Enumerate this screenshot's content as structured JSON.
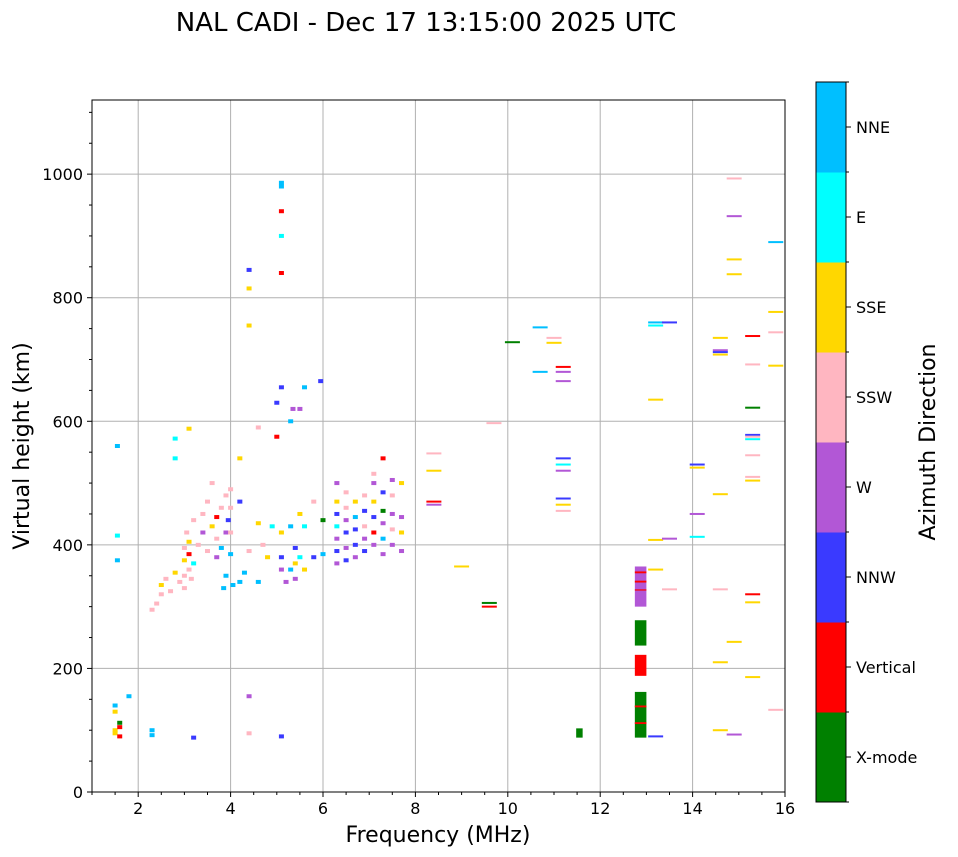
{
  "chart_data": {
    "type": "scatter",
    "title": "NAL CADI - Dec 17 13:15:00 2025 UTC",
    "xlabel": "Frequency (MHz)",
    "ylabel": "Virtual height (km)",
    "xlim": [
      1,
      16
    ],
    "ylim": [
      0,
      1120
    ],
    "xticks": [
      2,
      4,
      6,
      8,
      10,
      12,
      14,
      16
    ],
    "yticks": [
      0,
      200,
      400,
      600,
      800,
      1000
    ],
    "grid": true,
    "colorbar": {
      "label": "Azimuth Direction",
      "categories": [
        {
          "name": "X-mode",
          "color": "#008000"
        },
        {
          "name": "Vertical",
          "color": "#ff0000"
        },
        {
          "name": "NNW",
          "color": "#3a3aff"
        },
        {
          "name": "W",
          "color": "#b257d6"
        },
        {
          "name": "SSW",
          "color": "#ffb6c1"
        },
        {
          "name": "SSE",
          "color": "#ffd700"
        },
        {
          "name": "E",
          "color": "#00ffff"
        },
        {
          "name": "NNE",
          "color": "#00bfff"
        }
      ]
    },
    "points": [
      [
        1.5,
        100,
        "SSE"
      ],
      [
        1.5,
        95,
        "SSE"
      ],
      [
        1.6,
        90,
        "Vertical"
      ],
      [
        1.6,
        105,
        "Vertical"
      ],
      [
        1.5,
        130,
        "SSE"
      ],
      [
        1.5,
        140,
        "NNE"
      ],
      [
        1.6,
        112,
        "X-mode"
      ],
      [
        1.55,
        375,
        "NNE"
      ],
      [
        1.55,
        415,
        "E"
      ],
      [
        1.55,
        560,
        "NNE"
      ],
      [
        1.8,
        155,
        "NNE"
      ],
      [
        2.3,
        92,
        "NNE"
      ],
      [
        2.3,
        100,
        "NNE"
      ],
      [
        3.2,
        88,
        "NNW"
      ],
      [
        4.4,
        95,
        "SSW"
      ],
      [
        4.4,
        155,
        "W"
      ],
      [
        5.1,
        90,
        "NNW"
      ],
      [
        2.3,
        295,
        "SSW"
      ],
      [
        2.4,
        305,
        "SSW"
      ],
      [
        2.5,
        320,
        "SSW"
      ],
      [
        2.5,
        335,
        "SSE"
      ],
      [
        2.6,
        345,
        "SSW"
      ],
      [
        2.7,
        325,
        "SSW"
      ],
      [
        2.8,
        355,
        "SSE"
      ],
      [
        2.8,
        540,
        "E"
      ],
      [
        2.8,
        572,
        "E"
      ],
      [
        2.9,
        340,
        "SSW"
      ],
      [
        3.0,
        330,
        "SSW"
      ],
      [
        3.0,
        350,
        "SSW"
      ],
      [
        3.0,
        375,
        "SSE"
      ],
      [
        3.0,
        395,
        "SSW"
      ],
      [
        3.05,
        420,
        "SSW"
      ],
      [
        3.1,
        360,
        "SSW"
      ],
      [
        3.1,
        385,
        "Vertical"
      ],
      [
        3.1,
        405,
        "SSE"
      ],
      [
        3.15,
        345,
        "SSW"
      ],
      [
        3.2,
        440,
        "SSW"
      ],
      [
        3.2,
        370,
        "E"
      ],
      [
        3.1,
        588,
        "SSE"
      ],
      [
        3.3,
        400,
        "SSW"
      ],
      [
        3.4,
        450,
        "SSW"
      ],
      [
        3.4,
        420,
        "W"
      ],
      [
        3.5,
        470,
        "SSW"
      ],
      [
        3.5,
        390,
        "SSW"
      ],
      [
        3.6,
        430,
        "SSE"
      ],
      [
        3.6,
        500,
        "SSW"
      ],
      [
        3.7,
        410,
        "SSW"
      ],
      [
        3.7,
        445,
        "Vertical"
      ],
      [
        3.7,
        380,
        "W"
      ],
      [
        3.8,
        460,
        "SSW"
      ],
      [
        3.8,
        395,
        "NNE"
      ],
      [
        3.85,
        330,
        "NNE"
      ],
      [
        3.9,
        480,
        "SSW"
      ],
      [
        3.9,
        350,
        "NNE"
      ],
      [
        3.9,
        420,
        "W"
      ],
      [
        3.95,
        440,
        "NNW"
      ],
      [
        4.0,
        385,
        "NNE"
      ],
      [
        4.0,
        420,
        "SSW"
      ],
      [
        4.0,
        460,
        "SSW"
      ],
      [
        4.0,
        490,
        "SSW"
      ],
      [
        4.05,
        335,
        "NNE"
      ],
      [
        4.2,
        340,
        "NNE"
      ],
      [
        4.2,
        470,
        "NNW"
      ],
      [
        4.2,
        540,
        "SSE"
      ],
      [
        4.3,
        355,
        "NNE"
      ],
      [
        4.4,
        390,
        "SSW"
      ],
      [
        4.4,
        755,
        "SSE"
      ],
      [
        4.4,
        815,
        "SSE"
      ],
      [
        4.4,
        845,
        "NNW"
      ],
      [
        4.6,
        340,
        "NNE"
      ],
      [
        4.6,
        435,
        "SSE"
      ],
      [
        4.6,
        590,
        "SSW"
      ],
      [
        4.7,
        400,
        "SSW"
      ],
      [
        4.8,
        380,
        "SSE"
      ],
      [
        4.9,
        430,
        "E"
      ],
      [
        5.0,
        630,
        "NNW"
      ],
      [
        5.0,
        575,
        "Vertical"
      ],
      [
        5.1,
        360,
        "W"
      ],
      [
        5.1,
        380,
        "NNW"
      ],
      [
        5.1,
        420,
        "SSE"
      ],
      [
        5.1,
        655,
        "NNW"
      ],
      [
        5.1,
        840,
        "Vertical"
      ],
      [
        5.1,
        900,
        "E"
      ],
      [
        5.1,
        940,
        "Vertical"
      ],
      [
        5.1,
        980,
        "NNE"
      ],
      [
        5.1,
        986,
        "NNE"
      ],
      [
        5.2,
        340,
        "W"
      ],
      [
        5.3,
        360,
        "NNE"
      ],
      [
        5.3,
        430,
        "NNE"
      ],
      [
        5.3,
        600,
        "NNE"
      ],
      [
        5.35,
        620,
        "W"
      ],
      [
        5.4,
        345,
        "W"
      ],
      [
        5.4,
        370,
        "SSE"
      ],
      [
        5.4,
        395,
        "NNW"
      ],
      [
        5.5,
        380,
        "E"
      ],
      [
        5.5,
        450,
        "SSE"
      ],
      [
        5.5,
        620,
        "W"
      ],
      [
        5.6,
        360,
        "SSE"
      ],
      [
        5.6,
        430,
        "E"
      ],
      [
        5.6,
        655,
        "NNE"
      ],
      [
        5.8,
        380,
        "NNW"
      ],
      [
        5.8,
        470,
        "SSW"
      ],
      [
        5.95,
        665,
        "NNW"
      ],
      [
        6.0,
        440,
        "X-mode"
      ],
      [
        6.0,
        385,
        "NNE"
      ],
      [
        6.3,
        370,
        "W"
      ],
      [
        6.3,
        390,
        "NNW"
      ],
      [
        6.3,
        410,
        "W"
      ],
      [
        6.3,
        430,
        "E"
      ],
      [
        6.3,
        450,
        "NNW"
      ],
      [
        6.3,
        470,
        "SSE"
      ],
      [
        6.3,
        500,
        "W"
      ],
      [
        6.5,
        375,
        "NNW"
      ],
      [
        6.5,
        395,
        "W"
      ],
      [
        6.5,
        420,
        "NNW"
      ],
      [
        6.5,
        440,
        "W"
      ],
      [
        6.5,
        460,
        "SSW"
      ],
      [
        6.5,
        485,
        "SSW"
      ],
      [
        6.7,
        380,
        "W"
      ],
      [
        6.7,
        400,
        "NNW"
      ],
      [
        6.7,
        425,
        "NNW"
      ],
      [
        6.7,
        445,
        "NNE"
      ],
      [
        6.7,
        470,
        "SSE"
      ],
      [
        6.9,
        390,
        "NNW"
      ],
      [
        6.9,
        410,
        "W"
      ],
      [
        6.9,
        430,
        "SSW"
      ],
      [
        6.9,
        455,
        "NNW"
      ],
      [
        6.9,
        480,
        "SSW"
      ],
      [
        7.1,
        400,
        "W"
      ],
      [
        7.1,
        420,
        "Vertical"
      ],
      [
        7.1,
        445,
        "NNW"
      ],
      [
        7.1,
        470,
        "SSE"
      ],
      [
        7.1,
        500,
        "W"
      ],
      [
        7.1,
        515,
        "SSW"
      ],
      [
        7.3,
        385,
        "W"
      ],
      [
        7.3,
        410,
        "NNE"
      ],
      [
        7.3,
        435,
        "W"
      ],
      [
        7.3,
        455,
        "X-mode"
      ],
      [
        7.3,
        485,
        "NNW"
      ],
      [
        7.3,
        540,
        "Vertical"
      ],
      [
        7.5,
        400,
        "W"
      ],
      [
        7.5,
        425,
        "SSW"
      ],
      [
        7.5,
        450,
        "W"
      ],
      [
        7.5,
        480,
        "SSW"
      ],
      [
        7.5,
        505,
        "W"
      ],
      [
        7.7,
        390,
        "W"
      ],
      [
        7.7,
        420,
        "SSE"
      ],
      [
        7.7,
        445,
        "W"
      ],
      [
        7.7,
        500,
        "SSE"
      ],
      [
        8.4,
        465,
        "W"
      ],
      [
        8.4,
        520,
        "SSE"
      ],
      [
        8.4,
        548,
        "SSW"
      ],
      [
        8.4,
        470,
        "Vertical"
      ],
      [
        9.0,
        365,
        "SSE"
      ],
      [
        9.6,
        300,
        "Vertical"
      ],
      [
        9.6,
        306,
        "X-mode"
      ],
      [
        9.7,
        597,
        "SSW"
      ],
      [
        10.1,
        728,
        "X-mode"
      ],
      [
        10.7,
        680,
        "NNE"
      ],
      [
        10.7,
        752,
        "NNE"
      ],
      [
        11.0,
        735,
        "SSW"
      ],
      [
        11.0,
        727,
        "SSE"
      ],
      [
        11.2,
        665,
        "W"
      ],
      [
        11.2,
        680,
        "W"
      ],
      [
        11.2,
        688,
        "Vertical"
      ],
      [
        11.2,
        455,
        "SSW"
      ],
      [
        11.2,
        465,
        "SSE"
      ],
      [
        11.2,
        475,
        "NNW"
      ],
      [
        11.2,
        520,
        "W"
      ],
      [
        11.2,
        530,
        "E"
      ],
      [
        11.2,
        540,
        "NNW"
      ],
      [
        13.2,
        755,
        "E"
      ],
      [
        13.2,
        760,
        "NNE"
      ],
      [
        13.5,
        760,
        "NNW"
      ],
      [
        13.2,
        635,
        "SSE"
      ],
      [
        13.2,
        408,
        "SSE"
      ],
      [
        13.2,
        360,
        "SSE"
      ],
      [
        13.5,
        410,
        "W"
      ],
      [
        13.5,
        328,
        "SSW"
      ],
      [
        13.2,
        90,
        "NNW"
      ],
      [
        14.1,
        530,
        "NNW"
      ],
      [
        14.1,
        525,
        "SSE"
      ],
      [
        14.1,
        450,
        "W"
      ],
      [
        14.1,
        413,
        "E"
      ],
      [
        14.6,
        735,
        "SSE"
      ],
      [
        14.6,
        715,
        "W"
      ],
      [
        14.6,
        712,
        "NNW"
      ],
      [
        14.6,
        708,
        "SSE"
      ],
      [
        14.6,
        482,
        "SSE"
      ],
      [
        14.6,
        328,
        "SSW"
      ],
      [
        14.6,
        210,
        "SSE"
      ],
      [
        14.6,
        100,
        "SSE"
      ],
      [
        14.9,
        993,
        "SSW"
      ],
      [
        14.9,
        932,
        "W"
      ],
      [
        14.9,
        862,
        "SSE"
      ],
      [
        14.9,
        838,
        "SSE"
      ],
      [
        14.9,
        243,
        "SSE"
      ],
      [
        14.9,
        93,
        "W"
      ],
      [
        15.3,
        738,
        "Vertical"
      ],
      [
        15.3,
        692,
        "SSW"
      ],
      [
        15.3,
        622,
        "X-mode"
      ],
      [
        15.3,
        578,
        "NNW"
      ],
      [
        15.3,
        575,
        "SSW"
      ],
      [
        15.3,
        571,
        "E"
      ],
      [
        15.3,
        545,
        "SSW"
      ],
      [
        15.3,
        510,
        "SSW"
      ],
      [
        15.3,
        504,
        "SSE"
      ],
      [
        15.3,
        320,
        "Vertical"
      ],
      [
        15.3,
        307,
        "SSE"
      ],
      [
        15.3,
        186,
        "SSE"
      ],
      [
        15.8,
        890,
        "NNE"
      ],
      [
        15.8,
        777,
        "SSE"
      ],
      [
        15.8,
        744,
        "SSW"
      ],
      [
        15.8,
        690,
        "SSE"
      ],
      [
        15.8,
        133,
        "SSW"
      ]
    ],
    "boxes": [
      [
        12.75,
        13.0,
        300,
        365,
        "W"
      ],
      [
        12.75,
        13.0,
        88,
        162,
        "X-mode"
      ],
      [
        12.75,
        13.0,
        188,
        222,
        "Vertical"
      ],
      [
        12.75,
        13.0,
        237,
        278,
        "X-mode"
      ],
      [
        11.48,
        11.62,
        88,
        103,
        "X-mode"
      ],
      [
        12.75,
        13.0,
        354,
        357,
        "Vertical"
      ],
      [
        12.75,
        13.0,
        339,
        342,
        "Vertical"
      ],
      [
        12.75,
        13.0,
        326,
        328,
        "Vertical"
      ],
      [
        12.75,
        13.0,
        137,
        140,
        "Vertical"
      ],
      [
        12.75,
        13.0,
        110,
        113,
        "Vertical"
      ]
    ]
  }
}
